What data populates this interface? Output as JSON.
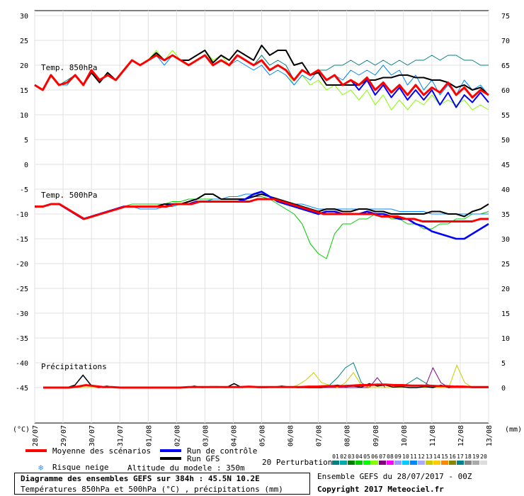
{
  "chart_data": {
    "type": "line",
    "title": "Diagramme des ensembles GEFS sur 384h : 45.5N 10.2E",
    "subtitle": "Températures 850hPa et 500hPa (°C) , précipitations (mm)",
    "dates": [
      "28/07",
      "29/07",
      "30/07",
      "31/07",
      "01/08",
      "02/08",
      "03/08",
      "04/08",
      "05/08",
      "06/08",
      "07/08",
      "08/08",
      "09/08",
      "10/08",
      "11/08",
      "12/08",
      "13/08"
    ],
    "left_axis": {
      "label": "(°C)",
      "ticks": [
        30,
        25,
        20,
        15,
        10,
        5,
        0,
        -5,
        -10,
        -15,
        -20,
        -25,
        -30,
        -35,
        -40,
        -45
      ],
      "range": [
        -45,
        30
      ]
    },
    "right_axis_850": {
      "ticks": [
        75,
        70,
        65,
        60,
        55,
        50,
        45
      ]
    },
    "right_axis_500": {
      "ticks": [
        40,
        35,
        30,
        25,
        20,
        15,
        10
      ]
    },
    "right_axis_precip": {
      "label": "(mm)",
      "ticks": [
        5,
        0
      ]
    },
    "panel_labels": {
      "t850": "Temp. 850hPa",
      "t500": "Temp. 500hPa",
      "precip": "Précipitations"
    },
    "series_styles": {
      "mean": {
        "name": "Moyenne des scénarios",
        "color": "#ff0000"
      },
      "control": {
        "name": "Run de contrôle",
        "color": "#0000ff"
      },
      "gfs": {
        "name": "Run GFS",
        "color": "#000000"
      }
    },
    "t850_mean": [
      16,
      15,
      18,
      16,
      16.5,
      18,
      16,
      19,
      17,
      18,
      17,
      19,
      21,
      20,
      21,
      22,
      21,
      22,
      21,
      20,
      21,
      22,
      20,
      21,
      20,
      22,
      21,
      20,
      21,
      19,
      20,
      19,
      17,
      19,
      18,
      19,
      17,
      18,
      16,
      17,
      16,
      17.5,
      15,
      16.5,
      14.5,
      16,
      14,
      16,
      14,
      15.5,
      14.5,
      16.5,
      14,
      15.5,
      13.5,
      15,
      14
    ],
    "t850_control": [
      16,
      15,
      18,
      16,
      16.5,
      18,
      16,
      19,
      17,
      18,
      17,
      19,
      21,
      20,
      21,
      22,
      21,
      22,
      21,
      20,
      21,
      22,
      20,
      21,
      20,
      22,
      21,
      20,
      21,
      19,
      20,
      19,
      17,
      19,
      18,
      19,
      17,
      18,
      16,
      17,
      15,
      17,
      14,
      16,
      13.5,
      15.5,
      13,
      15,
      13,
      15,
      12,
      14.5,
      11.5,
      14,
      12.5,
      14.5,
      12.5
    ],
    "t850_gfs": [
      16,
      15,
      18,
      16,
      16.5,
      18,
      16,
      18.5,
      16.5,
      18.5,
      17,
      19,
      21,
      20,
      21,
      22.5,
      21,
      22,
      21,
      21,
      22,
      23,
      20.5,
      22,
      21,
      23,
      22,
      21,
      24,
      22,
      23,
      23,
      20,
      20.5,
      18,
      18.5,
      16,
      16,
      16,
      16,
      16,
      17,
      17,
      17.5,
      17.5,
      18,
      18,
      17.5,
      17.5,
      17,
      17,
      16.5,
      15.5,
      16,
      15,
      15.5,
      14
    ],
    "t850_members": [
      [
        16,
        15,
        18,
        16,
        17,
        18,
        16,
        19,
        17,
        18,
        17,
        19,
        21,
        20,
        21,
        22,
        21,
        22,
        21,
        20,
        21,
        22,
        20,
        21,
        20,
        22,
        21,
        20,
        22,
        20,
        21,
        20,
        17,
        19,
        18,
        19,
        19,
        20,
        20,
        21,
        20,
        21,
        20,
        21,
        20,
        21,
        20,
        21,
        21,
        22,
        21,
        22,
        22,
        21,
        21,
        20,
        20
      ],
      [
        16,
        15,
        18,
        16,
        16,
        18,
        16,
        19,
        17,
        18,
        17,
        19,
        21,
        20,
        21,
        23,
        21,
        23,
        21,
        21,
        22,
        23,
        21,
        22,
        20,
        22,
        21,
        20,
        21,
        19,
        20,
        19,
        16,
        18,
        16,
        17,
        15,
        16,
        14,
        15,
        13,
        15,
        12,
        14,
        11,
        13,
        11,
        13,
        12,
        14,
        12,
        13,
        12,
        13,
        11,
        12,
        11
      ],
      [
        16,
        15,
        18,
        16,
        16,
        18,
        16,
        19,
        17,
        18,
        17,
        19,
        21,
        20,
        21,
        22,
        20,
        22,
        21,
        20,
        21,
        22,
        20,
        21,
        20,
        21,
        20,
        19,
        20,
        18,
        19,
        18,
        16,
        18,
        17,
        19,
        17,
        18,
        17,
        19,
        18,
        19,
        18,
        20,
        18,
        19,
        16,
        18,
        15,
        17,
        14,
        16,
        14,
        17,
        15,
        16,
        14
      ]
    ],
    "t500_mean": [
      -8.5,
      -8.5,
      -8,
      -8,
      -9,
      -10,
      -11,
      -10.5,
      -10,
      -9.5,
      -9,
      -8.5,
      -8.5,
      -8.5,
      -8.5,
      -8.5,
      -8.5,
      -8,
      -8,
      -8,
      -7.5,
      -7.5,
      -7.5,
      -7.5,
      -7.5,
      -7.5,
      -7.5,
      -7,
      -7,
      -7,
      -7.5,
      -8,
      -8.5,
      -9,
      -9.5,
      -10,
      -10,
      -10,
      -10,
      -10,
      -10,
      -10,
      -10.5,
      -10.5,
      -10.5,
      -11,
      -11,
      -11.5,
      -11.5,
      -11.5,
      -11.5,
      -11.5,
      -11.5,
      -11.5,
      -11,
      -11
    ],
    "t500_control": [
      -8.5,
      -8.5,
      -8,
      -8,
      -9,
      -10,
      -11,
      -10.5,
      -10,
      -9.5,
      -9,
      -8.5,
      -8.5,
      -8.5,
      -8.5,
      -8.5,
      -8.5,
      -8,
      -8,
      -8,
      -7.5,
      -7.5,
      -7.5,
      -7.5,
      -7.5,
      -7.5,
      -7,
      -6,
      -5.5,
      -6.5,
      -7.5,
      -8,
      -8.5,
      -9,
      -9.5,
      -10,
      -9.5,
      -9.5,
      -10,
      -10,
      -10,
      -9.5,
      -10,
      -10,
      -10.5,
      -11,
      -11,
      -12,
      -12.5,
      -13.5,
      -14,
      -14.5,
      -15,
      -15,
      -14,
      -13,
      -12
    ],
    "t500_gfs": [
      -8.5,
      -8.5,
      -8,
      -8,
      -9,
      -10,
      -11,
      -10.5,
      -10,
      -9.5,
      -9,
      -8.5,
      -8.5,
      -8.5,
      -8.5,
      -8.5,
      -8,
      -8,
      -8,
      -7.5,
      -7,
      -6,
      -6,
      -7,
      -7,
      -7,
      -7,
      -6.5,
      -6,
      -6.5,
      -7,
      -7.5,
      -8,
      -8.5,
      -9,
      -9.5,
      -9,
      -9,
      -9.5,
      -9.5,
      -9,
      -9,
      -9.5,
      -9.5,
      -10,
      -10,
      -10,
      -10,
      -10,
      -9.5,
      -9.5,
      -10,
      -10,
      -10.5,
      -9.5,
      -9,
      -8
    ],
    "t500_members": [
      [
        -8.5,
        -8.5,
        -8,
        -8,
        -9,
        -10,
        -11,
        -10.5,
        -10,
        -9.5,
        -9,
        -8.5,
        -8,
        -8,
        -8,
        -8,
        -8,
        -7.5,
        -7.5,
        -7,
        -7,
        -7,
        -7,
        -7,
        -7,
        -7,
        -7,
        -6.5,
        -6.5,
        -7,
        -8,
        -9,
        -10,
        -12,
        -16,
        -18,
        -19,
        -14,
        -12,
        -12,
        -11,
        -11,
        -10,
        -10,
        -11,
        -11,
        -12,
        -12,
        -13,
        -13,
        -12,
        -12,
        -11,
        -11,
        -10,
        -10,
        -9.5
      ],
      [
        -8.5,
        -8.5,
        -8,
        -8,
        -9,
        -10,
        -11,
        -10.5,
        -10,
        -9.5,
        -9,
        -8.5,
        -8.5,
        -9,
        -9,
        -9,
        -8.5,
        -8.5,
        -8,
        -8,
        -7.5,
        -7.5,
        -7,
        -7,
        -6.5,
        -6.5,
        -6,
        -6,
        -6,
        -6.5,
        -7,
        -7.5,
        -8,
        -8,
        -8.5,
        -9,
        -9,
        -9,
        -9,
        -9,
        -9,
        -9,
        -9,
        -9,
        -9,
        -9.5,
        -9.5,
        -9.5,
        -9.5,
        -10,
        -10,
        -10,
        -10,
        -10,
        -10,
        -10,
        -10
      ]
    ],
    "precip_mean": [
      0,
      0,
      0,
      0,
      0.2,
      0.5,
      0.3,
      0.1,
      0.1,
      0,
      0,
      0,
      0,
      0,
      0,
      0,
      0,
      0.1,
      0.1,
      0.1,
      0.1,
      0.1,
      0.1,
      0.1,
      0.2,
      0.1,
      0.1,
      0.1,
      0.1,
      0.1,
      0.1,
      0.2,
      0.2,
      0.3,
      0.3,
      0.3,
      0.4,
      0.5,
      0.5,
      0.6,
      0.6,
      0.5,
      0.5,
      0.4,
      0.4,
      0.4,
      0.3,
      0.3,
      0.2,
      0.2,
      0.1,
      0.1,
      0.1
    ],
    "precip_gfs": [
      0,
      0,
      0,
      0,
      0.5,
      2.5,
      0.5,
      0,
      0.3,
      0,
      0,
      0,
      0,
      0,
      0,
      0,
      0,
      0,
      0,
      0.3,
      0,
      0.2,
      0.2,
      0,
      0.8,
      0,
      0.2,
      0,
      0,
      0.1,
      0.3,
      0.1,
      0,
      0,
      0,
      0,
      0.3,
      0.5,
      0.2,
      0.3,
      0.1,
      0.8,
      0.3,
      0.5,
      0.1,
      0.2,
      0,
      0,
      0.2,
      0,
      0.5,
      0,
      0.3,
      0.1,
      0,
      0,
      0
    ],
    "precip_members": [
      [
        0,
        0,
        0,
        0,
        0,
        0,
        0,
        0,
        0,
        0,
        0,
        0,
        0,
        0,
        0,
        0,
        0,
        0,
        0,
        0,
        0,
        0,
        0,
        0,
        0,
        0,
        0,
        0,
        0,
        0,
        0,
        0,
        0,
        0,
        0,
        0,
        0.5,
        2,
        4,
        5,
        1,
        0,
        0,
        0,
        0,
        0,
        1,
        2,
        1,
        0,
        0,
        0,
        0,
        0,
        0,
        0,
        0
      ],
      [
        0,
        0,
        0,
        0,
        0,
        0,
        0,
        0,
        0,
        0,
        0,
        0,
        0,
        0,
        0,
        0,
        0,
        0,
        0,
        0,
        0,
        0,
        0,
        0,
        0,
        0,
        0,
        0,
        0,
        0,
        0,
        0,
        0,
        0,
        0,
        0,
        0,
        0,
        0,
        0,
        0,
        0,
        2,
        0,
        0,
        0,
        0,
        0,
        0,
        4,
        1,
        0,
        0,
        0,
        0,
        0,
        0
      ],
      [
        0,
        0,
        0,
        0,
        0,
        0,
        0,
        0,
        0,
        0,
        0,
        0,
        0,
        0,
        0,
        0,
        0,
        0,
        0,
        0,
        0,
        0,
        0,
        0,
        0,
        0,
        0,
        0,
        0,
        0,
        0,
        0,
        0.5,
        1.5,
        3,
        1,
        0.5,
        0,
        1,
        3,
        0.5,
        0,
        0,
        0,
        0,
        0,
        0,
        0,
        0,
        0,
        0,
        0,
        4.5,
        1,
        0,
        0,
        0
      ]
    ]
  },
  "legend": {
    "mean_label": "Moyenne des scénarios",
    "control_label": "Run de contrôle",
    "gfs_label": "Run GFS",
    "snow_label": "Risque neige",
    "altitude_label": "Altitude du modele : 350m",
    "perturbations_label": "20 Perturbations",
    "perturbation_numbers": [
      "01",
      "02",
      "03",
      "04",
      "05",
      "06",
      "07",
      "08",
      "09",
      "10",
      "11",
      "12",
      "13",
      "14",
      "15",
      "16",
      "17",
      "18",
      "19",
      "20"
    ],
    "perturbation_colors": [
      "#008080",
      "#00aaaa",
      "#008000",
      "#00cc00",
      "#00ff00",
      "#88ff00",
      "#800080",
      "#ff00ff",
      "#9999ff",
      "#00ccff",
      "#0088ff",
      "#aaaaff",
      "#cccc00",
      "#ffcc00",
      "#ff8800",
      "#888800",
      "#008888",
      "#888888",
      "#aaaaaa",
      "#dddddd"
    ]
  },
  "footer": {
    "title": "Diagramme des ensembles GEFS sur 384h : 45.5N 10.2E",
    "subtitle": "Températures 850hPa et 500hPa (°C) , précipitations (mm)",
    "run_info": "Ensemble GEFS du 28/07/2017 - 00Z",
    "copyright": "Copyright 2017 Meteociel.fr"
  }
}
